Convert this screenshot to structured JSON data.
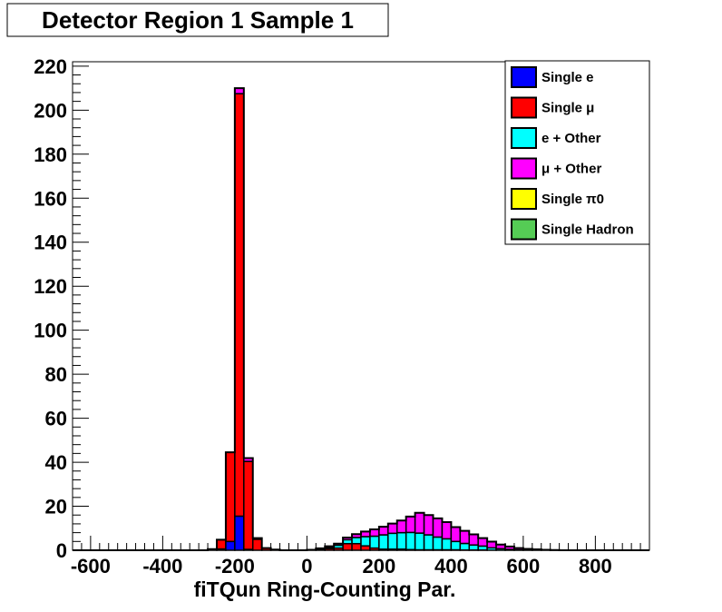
{
  "chart_data": {
    "type": "bar",
    "subtype": "stacked-histogram",
    "title": "Detector Region 1 Sample 1",
    "xlabel": "fiTQun Ring-Counting Par.",
    "ylabel": "",
    "xlim": [
      -650,
      950
    ],
    "ylim": [
      0,
      222
    ],
    "bin_width": 25,
    "x_ticks": [
      -600,
      -400,
      -200,
      0,
      200,
      400,
      600,
      800
    ],
    "y_ticks": [
      0,
      20,
      40,
      60,
      80,
      100,
      120,
      140,
      160,
      180,
      200,
      220
    ],
    "grid": false,
    "legend_position": "top-right",
    "bin_starts": [
      -650,
      -625,
      -600,
      -575,
      -550,
      -525,
      -500,
      -475,
      -450,
      -425,
      -400,
      -375,
      -350,
      -325,
      -300,
      -275,
      -250,
      -225,
      -200,
      -175,
      -150,
      -125,
      -100,
      -75,
      -50,
      -25,
      0,
      25,
      50,
      75,
      100,
      125,
      150,
      175,
      200,
      225,
      250,
      275,
      300,
      325,
      350,
      375,
      400,
      425,
      450,
      475,
      500,
      525,
      550,
      575,
      600,
      625,
      650,
      675,
      700,
      725,
      750,
      775,
      800,
      825,
      850,
      875,
      900,
      925
    ],
    "series": [
      {
        "name": "Single e",
        "color": "#0000ff",
        "values": [
          0,
          0,
          0,
          0,
          0,
          0,
          0,
          0,
          0,
          0,
          0,
          0,
          0,
          0,
          0,
          0.2,
          0.6,
          4,
          15.5,
          0.4,
          0,
          0,
          0,
          0,
          0,
          0,
          0,
          0,
          0,
          0,
          0,
          0,
          0,
          0,
          0,
          0,
          0,
          0,
          0,
          0,
          0,
          0,
          0,
          0,
          0,
          0,
          0,
          0,
          0,
          0,
          0,
          0,
          0,
          0,
          0,
          0,
          0,
          0,
          0,
          0,
          0,
          0,
          0,
          0
        ]
      },
      {
        "name": "Single μ",
        "color": "#ff0000",
        "values": [
          0,
          0,
          0,
          0,
          0,
          0,
          0,
          0,
          0,
          0,
          0,
          0,
          0,
          0,
          0,
          0.3,
          4.2,
          40.5,
          192,
          40,
          5,
          1,
          0.3,
          0,
          0,
          0,
          0.2,
          0.5,
          0.8,
          1,
          3,
          3,
          2,
          1,
          0.5,
          0.5,
          0.5,
          0.3,
          0.2,
          0.2,
          0.2,
          0.2,
          0.2,
          0.1,
          0.1,
          0.1,
          0,
          0,
          0,
          0,
          0,
          0,
          0,
          0,
          0,
          0,
          0,
          0,
          0,
          0,
          0,
          0,
          0,
          0
        ]
      },
      {
        "name": "e + Other",
        "color": "#00ffff",
        "values": [
          0,
          0,
          0,
          0,
          0,
          0,
          0,
          0,
          0,
          0,
          0,
          0,
          0,
          0,
          0,
          0,
          0,
          0,
          0,
          0,
          0,
          0,
          0,
          0,
          0,
          0,
          0,
          0.3,
          0.6,
          1.3,
          1.8,
          2.8,
          4.2,
          5.4,
          6.5,
          7.2,
          7.5,
          7.8,
          7.6,
          6.8,
          5.8,
          5,
          3.8,
          3,
          2.3,
          1.8,
          1.1,
          0.7,
          0.4,
          0.2,
          0.1,
          0.1,
          0,
          0,
          0,
          0,
          0,
          0,
          0,
          0,
          0,
          0,
          0,
          0
        ]
      },
      {
        "name": "μ + Other",
        "color": "#ff00ff",
        "values": [
          0,
          0,
          0,
          0,
          0,
          0,
          0,
          0,
          0,
          0,
          0,
          0,
          0,
          0,
          0,
          0,
          0,
          0,
          2.5,
          1.5,
          0.5,
          0,
          0,
          0,
          0,
          0,
          0,
          0.1,
          0.4,
          0.7,
          1,
          1.5,
          2.3,
          3.1,
          3.7,
          4.4,
          5.5,
          7.2,
          9.2,
          9,
          8.5,
          7.6,
          6.5,
          5.7,
          4.8,
          3.6,
          2.8,
          1.9,
          1.3,
          0.8,
          0.5,
          0.3,
          0.2,
          0.1,
          0,
          0,
          0,
          0,
          0,
          0,
          0,
          0,
          0,
          0
        ]
      },
      {
        "name": "Single π0",
        "color": "#ffff00",
        "values": [
          0,
          0,
          0,
          0,
          0,
          0,
          0,
          0,
          0,
          0,
          0,
          0,
          0,
          0,
          0,
          0,
          0,
          0,
          0,
          0,
          0,
          0,
          0,
          0,
          0,
          0,
          0,
          0,
          0,
          0,
          0,
          0,
          0,
          0,
          0,
          0,
          0,
          0,
          0,
          0,
          0,
          0,
          0,
          0,
          0,
          0,
          0,
          0,
          0,
          0,
          0,
          0,
          0,
          0,
          0,
          0,
          0,
          0,
          0,
          0,
          0,
          0,
          0,
          0
        ]
      },
      {
        "name": "Single Hadron",
        "color": "#55cc55",
        "values": [
          0,
          0,
          0,
          0,
          0,
          0,
          0,
          0,
          0,
          0,
          0,
          0,
          0,
          0,
          0,
          0,
          0,
          0,
          0,
          0,
          0,
          0,
          0,
          0,
          0,
          0,
          0,
          0,
          0,
          0,
          0,
          0,
          0,
          0,
          0,
          0,
          0,
          0,
          0,
          0,
          0,
          0,
          0,
          0,
          0,
          0,
          0,
          0,
          0,
          0,
          0,
          0,
          0,
          0,
          0,
          0,
          0,
          0,
          0,
          0,
          0,
          0,
          0,
          0
        ]
      }
    ]
  }
}
